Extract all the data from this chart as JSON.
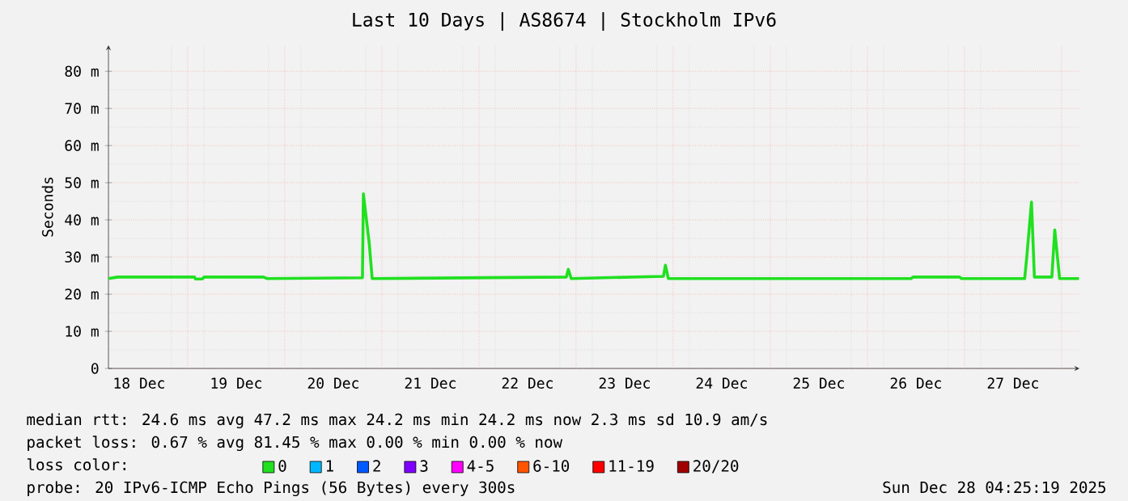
{
  "chart_data": {
    "type": "line",
    "title": "Last 10 Days | AS8674 | Stockholm IPv6",
    "ylabel": "Seconds",
    "xlim": [
      "2025-12-18T04:25",
      "2025-12-28T04:25"
    ],
    "ylim": [
      0,
      87
    ],
    "xticks": [
      {
        "value": "2025-12-18T12:00",
        "label": "18 Dec"
      },
      {
        "value": "2025-12-19",
        "label": null
      },
      {
        "value": "2025-12-19T12:00",
        "label": "19 Dec"
      },
      {
        "value": "2025-12-20",
        "label": null
      },
      {
        "value": "2025-12-20T12:00",
        "label": "20 Dec"
      },
      {
        "value": "2025-12-21",
        "label": null
      },
      {
        "value": "2025-12-21T12:00",
        "label": "21 Dec"
      },
      {
        "value": "2025-12-22",
        "label": null
      },
      {
        "value": "2025-12-22T12:00",
        "label": "22 Dec"
      },
      {
        "value": "2025-12-23",
        "label": null
      },
      {
        "value": "2025-12-23T12:00",
        "label": "23 Dec"
      },
      {
        "value": "2025-12-24",
        "label": null
      },
      {
        "value": "2025-12-24T12:00",
        "label": "24 Dec"
      },
      {
        "value": "2025-12-25",
        "label": null
      },
      {
        "value": "2025-12-25T12:00",
        "label": "25 Dec"
      },
      {
        "value": "2025-12-26",
        "label": null
      },
      {
        "value": "2025-12-26T12:00",
        "label": "26 Dec"
      },
      {
        "value": "2025-12-27",
        "label": null
      },
      {
        "value": "2025-12-27T12:00",
        "label": "27 Dec"
      },
      {
        "value": "2025-12-28",
        "label": null
      }
    ],
    "yticks": [
      0,
      {
        "value": 10,
        "label": "10 m"
      },
      {
        "value": 20,
        "label": "20 m"
      },
      {
        "value": 30,
        "label": "30 m"
      },
      {
        "value": 40,
        "label": "40 m"
      },
      {
        "value": 50,
        "label": "50 m"
      },
      {
        "value": 60,
        "label": "60 m"
      },
      {
        "value": 70,
        "label": "70 m"
      },
      {
        "value": 80,
        "label": "80 m"
      }
    ],
    "grid": true,
    "legend": "bottom",
    "legend_title": "loss color:",
    "series": [
      {
        "name": "0",
        "color": "#20e020",
        "x": [
          "2025-12-18T04:25",
          "2025-12-18T06:43",
          "2025-12-19T01:41",
          "2025-12-19T01:55",
          "2025-12-19T03:36",
          "2025-12-19T04:05",
          "2025-12-19T18:43",
          "2025-12-19T19:41",
          "2025-12-20T19:12",
          "2025-12-20T19:26",
          "2025-12-20T20:53",
          "2025-12-20T21:36",
          "2025-12-22T21:36",
          "2025-12-22T22:05",
          "2025-12-22T22:48",
          "2025-12-23T21:36",
          "2025-12-23T22:05",
          "2025-12-23T22:48",
          "2025-12-26T10:48",
          "2025-12-26T11:17",
          "2025-12-26T22:48",
          "2025-12-26T23:17",
          "2025-12-27T14:53",
          "2025-12-27T15:22",
          "2025-12-27T16:34",
          "2025-12-27T17:17",
          "2025-12-27T21:36",
          "2025-12-27T22:19",
          "2025-12-27T23:31",
          "2025-12-28T04:19"
        ],
        "values": [
          24.2,
          24.6,
          24.6,
          24.1,
          24.1,
          24.6,
          24.6,
          24.2,
          24.4,
          47.0,
          33.6,
          24.2,
          24.6,
          26.7,
          24.2,
          24.8,
          27.8,
          24.2,
          24.2,
          24.6,
          24.6,
          24.2,
          24.2,
          29.6,
          44.8,
          24.6,
          24.6,
          37.3,
          24.2,
          24.2
        ]
      },
      {
        "name": "1",
        "color": "#00b8ff"
      },
      {
        "name": "2",
        "color": "#0059ff"
      },
      {
        "name": "3",
        "color": "#7e00ff"
      },
      {
        "name": "4-5",
        "color": "#ff00fe"
      },
      {
        "name": "6-10",
        "color": "#ff5500"
      },
      {
        "name": "11-19",
        "color": "#ff0000"
      },
      {
        "name": "20/20",
        "color": "#a10000"
      }
    ],
    "annotations": [
      "median rtt:  24.6 ms avg  47.2 ms max  24.2 ms min  24.2 ms now  2.3 ms sd  10.9  am/s",
      "packet loss: 0.67 % avg  81.45 % max  0.00 % min  0.00 % now",
      "probe:  20 IPv6-ICMP Echo Pings (56 Bytes) every 300s",
      "Sun Dec 28 04:25:19 2025"
    ]
  }
}
